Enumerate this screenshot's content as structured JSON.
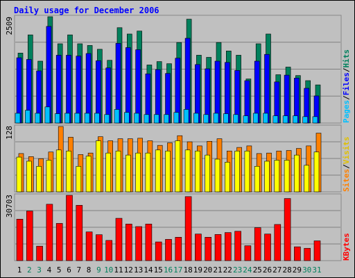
{
  "chart_data": {
    "title": "Daily usage for December 2006",
    "type": "bar",
    "days": [
      "1",
      "2",
      "3",
      "4",
      "5",
      "6",
      "7",
      "8",
      "9",
      "10",
      "11",
      "12",
      "13",
      "14",
      "15",
      "16",
      "17",
      "18",
      "19",
      "20",
      "21",
      "22",
      "23",
      "24",
      "25",
      "26",
      "27",
      "28",
      "29",
      "30",
      "31"
    ],
    "weekend_days": [
      "2",
      "3",
      "9",
      "10",
      "16",
      "17",
      "23",
      "24",
      "30",
      "31"
    ],
    "colors": {
      "hits": "#00805C",
      "files": "#0000FF",
      "pages": "#00C0FF",
      "visits": "#FFFF00",
      "sites": "#FF8000",
      "kbytes": "#FF0000",
      "weekday_label": "#000000",
      "weekend_label": "#00805C",
      "title": "#0000FF",
      "background": "#C0C0C0"
    },
    "panels": [
      {
        "id": "hits-panel",
        "max_label": "2509",
        "ymax": 2509,
        "legend": [
          {
            "label": "Pages",
            "color": "#00C0FF"
          },
          {
            "label": "Files",
            "color": "#0000FF"
          },
          {
            "label": "Hits",
            "color": "#00805C"
          }
        ],
        "series": [
          {
            "name": "Hits",
            "values": [
              1650,
              2080,
              1460,
              2509,
              1870,
              2080,
              1870,
              1830,
              1740,
              1480,
              2250,
              2100,
              2170,
              1370,
              1450,
              1400,
              1900,
              2450,
              1600,
              1550,
              1900,
              1700,
              1600,
              1040,
              1870,
              2100,
              1140,
              1320,
              1120,
              1000,
              900
            ]
          },
          {
            "name": "Files",
            "values": [
              1540,
              1500,
              1230,
              2280,
              1600,
              1600,
              1580,
              1640,
              1470,
              1300,
              1880,
              1780,
              1730,
              1160,
              1260,
              1170,
              1530,
              2000,
              1380,
              1280,
              1460,
              1430,
              1240,
              1000,
              1460,
              1620,
              970,
              1130,
              1060,
              820,
              640
            ]
          },
          {
            "name": "Pages",
            "values": [
              230,
              300,
              230,
              380,
              220,
              230,
              230,
              230,
              230,
              200,
              320,
              250,
              230,
              200,
              200,
              200,
              250,
              320,
              230,
              200,
              230,
              220,
              200,
              170,
              230,
              230,
              170,
              170,
              170,
              150,
              150
            ]
          }
        ]
      },
      {
        "id": "visits-panel",
        "max_label": "128",
        "ymax": 128,
        "legend": [
          {
            "label": "Sites",
            "color": "#FF8000"
          },
          {
            "label": "Visits",
            "color": "#FFFF00"
          }
        ],
        "series": [
          {
            "name": "Visits",
            "values": [
              68,
              60,
              50,
              62,
              82,
              80,
              50,
              70,
              100,
              76,
              80,
              72,
              76,
              76,
              82,
              80,
              100,
              82,
              80,
              72,
              64,
              58,
              80,
              80,
              50,
              60,
              62,
              62,
              72,
              52,
              78
            ]
          },
          {
            "name": "Sites",
            "values": [
              75,
              69,
              65,
              78,
              128,
              107,
              73,
              76,
              108,
              100,
              104,
              104,
              105,
              100,
              91,
              96,
              110,
              98,
              90,
              99,
              104,
              80,
              87,
              90,
              75,
              76,
              80,
              81,
              85,
              90,
              115
            ]
          }
        ]
      },
      {
        "id": "kbytes-panel",
        "max_label": "30703",
        "ymax": 30703,
        "legend": [
          {
            "label": "KBytes",
            "color": "#FF0000"
          }
        ],
        "series": [
          {
            "name": "KBytes",
            "values": [
              19500,
              23300,
              6800,
              26500,
              17500,
              30703,
              26000,
              13500,
              12200,
              9500,
              19900,
              17200,
              16000,
              17200,
              8800,
              10000,
              11000,
              30100,
              12500,
              11000,
              12300,
              13200,
              13800,
              7000,
              15500,
              12500,
              17000,
              29200,
              6500,
              5800,
              9300
            ]
          }
        ]
      }
    ]
  }
}
